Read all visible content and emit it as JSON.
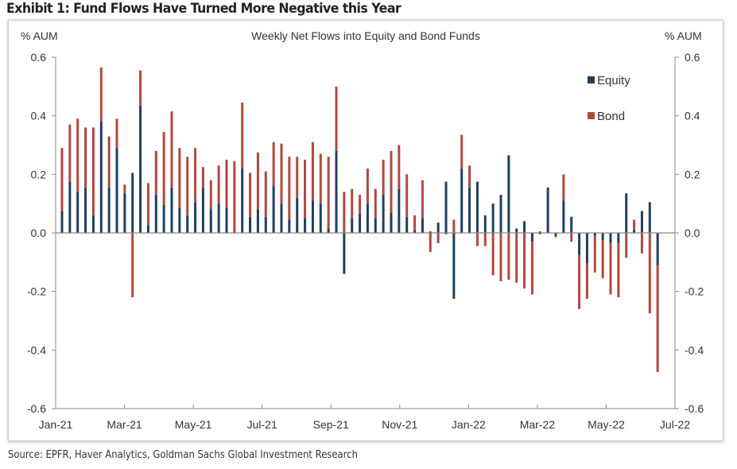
{
  "exhibit_title": "Exhibit 1: Fund Flows Have Turned More Negative this Year",
  "source": "Source: EPFR, Haver Analytics, Goldman Sachs Global Investment Research",
  "colors": {
    "equity": "#1f3f5f",
    "bond": "#b0483e",
    "axis": "#888888",
    "text": "#333333"
  },
  "chart_data": {
    "type": "bar",
    "stacked": true,
    "title": "Weekly Net Flows into Equity and Bond Funds",
    "ylabel_left": "% AUM",
    "ylabel_right": "% AUM",
    "xlabel": "",
    "ylim": [
      -0.6,
      0.6
    ],
    "yticks": [
      0.6,
      0.4,
      0.2,
      0.0,
      -0.2,
      -0.4,
      -0.6
    ],
    "ytick_labels": [
      "0.6",
      "0.4",
      "0.2",
      "0.0",
      "-0.2",
      "-0.4",
      "-0.6"
    ],
    "xtick_labels": [
      "Jan-21",
      "Mar-21",
      "May-21",
      "Jul-21",
      "Sep-21",
      "Nov-21",
      "Jan-22",
      "Mar-22",
      "May-22",
      "Jul-22"
    ],
    "grid": false,
    "legend": {
      "position": "top-right",
      "entries": [
        "Equity",
        "Bond"
      ]
    },
    "series": [
      {
        "name": "Equity",
        "values": [
          0.075,
          0.175,
          0.14,
          0.155,
          0.06,
          0.38,
          0.155,
          0.29,
          0.135,
          0.205,
          0.435,
          0.025,
          0.13,
          0.095,
          0.155,
          0.085,
          0.06,
          0.105,
          0.155,
          0.08,
          0.1,
          0.085,
          0.005,
          0.22,
          0.055,
          0.08,
          0.055,
          0.16,
          0.1,
          0.045,
          0.12,
          0.05,
          0.11,
          0.1,
          0.015,
          0.28,
          -0.14,
          0.05,
          0.065,
          0.1,
          0.05,
          0.13,
          0.07,
          0.15,
          0.055,
          0.01,
          0.05,
          0.005,
          0.035,
          0.175,
          -0.225,
          0.22,
          0.155,
          0.175,
          0.06,
          0.1,
          0.13,
          0.265,
          0.015,
          0.04,
          -0.03,
          0.005,
          0.155,
          -0.01,
          0.11,
          0.055,
          -0.075,
          -0.105,
          -0.01,
          -0.025,
          -0.035,
          -0.035,
          0.135,
          0.01,
          0.075,
          0.105,
          -0.11,
          0.0
        ]
      },
      {
        "name": "Bond",
        "values": [
          0.215,
          0.195,
          0.25,
          0.205,
          0.3,
          0.185,
          0.175,
          0.1,
          0.03,
          -0.22,
          0.12,
          0.145,
          0.15,
          0.25,
          0.26,
          0.205,
          0.2,
          0.185,
          0.07,
          0.1,
          0.13,
          0.165,
          0.24,
          0.225,
          0.15,
          0.195,
          0.155,
          0.15,
          0.205,
          0.215,
          0.14,
          0.2,
          0.2,
          0.17,
          0.245,
          0.22,
          0.14,
          0.1,
          0.065,
          0.12,
          0.1,
          0.12,
          0.21,
          0.15,
          0.145,
          0.05,
          0.13,
          -0.065,
          -0.035,
          -0.005,
          0.045,
          0.115,
          0.075,
          -0.045,
          -0.045,
          -0.145,
          -0.165,
          -0.16,
          -0.17,
          -0.19,
          -0.18,
          -0.005,
          0.0,
          -0.005,
          0.09,
          -0.03,
          -0.185,
          -0.12,
          -0.125,
          -0.13,
          -0.175,
          -0.185,
          -0.085,
          0.035,
          -0.07,
          -0.275,
          -0.365,
          0.0
        ]
      }
    ]
  }
}
